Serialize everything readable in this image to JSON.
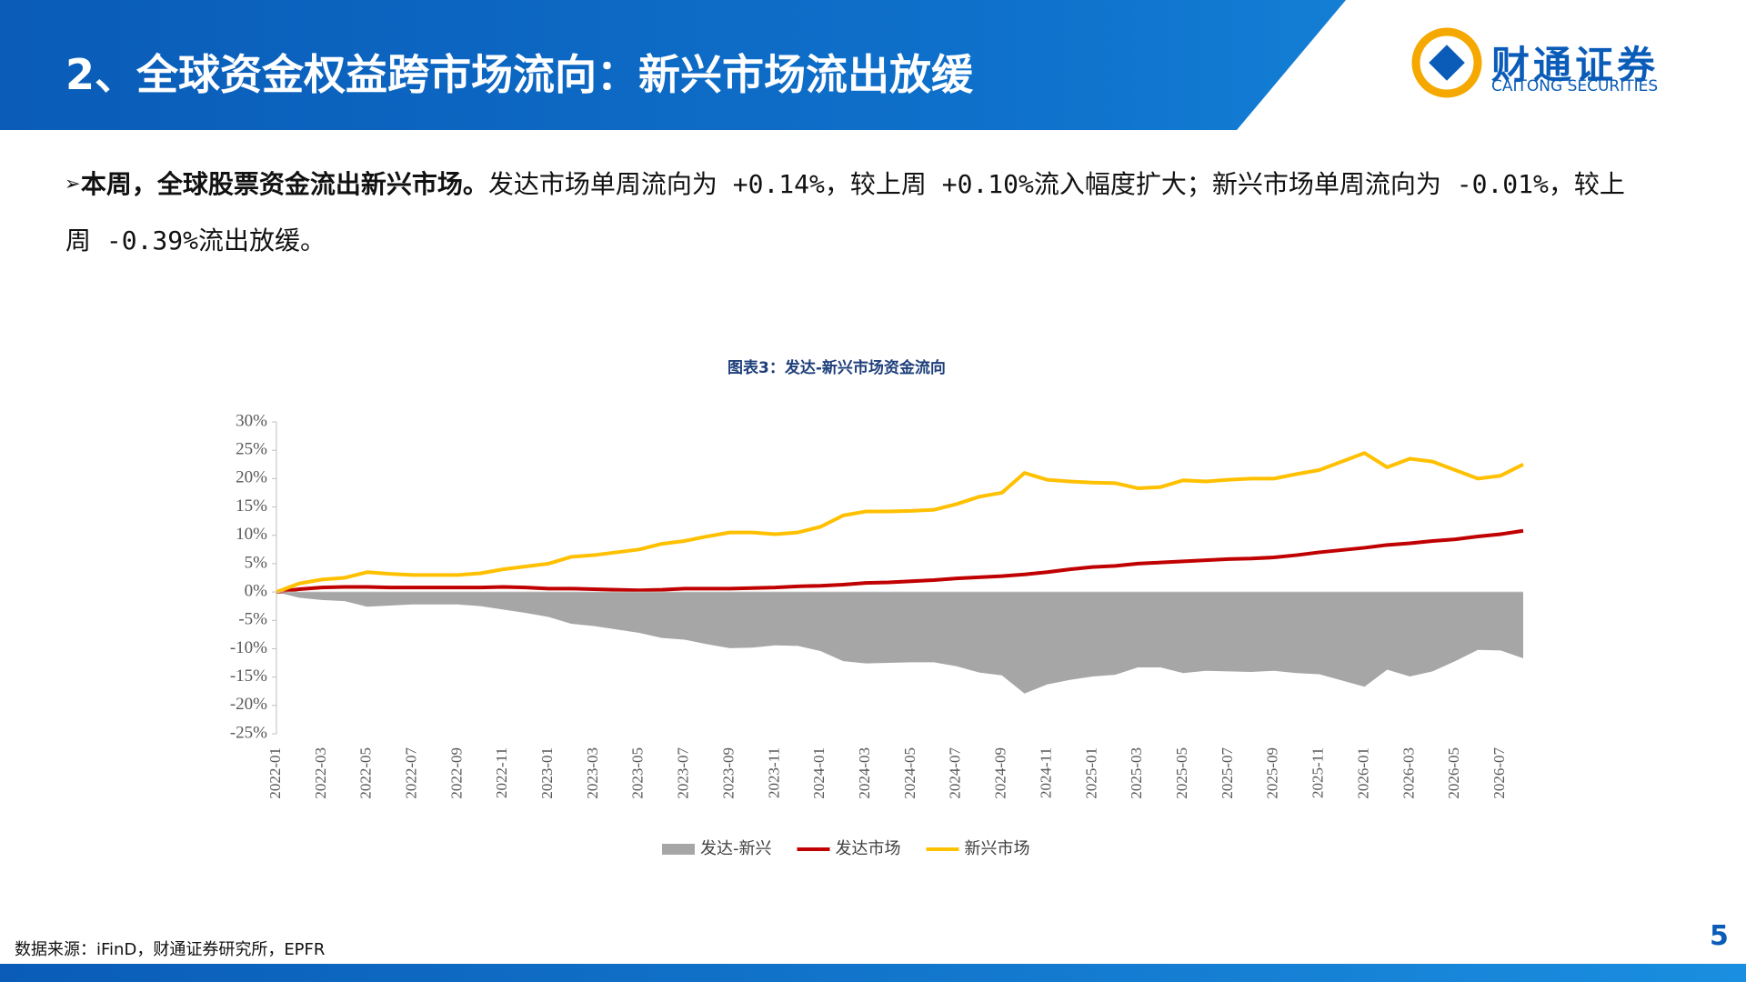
{
  "header": {
    "title": "2、全球资金权益跨市场流向：新兴市场流出放缓",
    "logo_cn": "财通证券",
    "logo_en": "CAITONG SECURITIES"
  },
  "bullet": {
    "bold": "本周，全球股票资金流出新兴市场。",
    "text": "发达市场单周流向为 +0.14%，较上周 +0.10%流入幅度扩大；新兴市场单周流向为 -0.01%，较上周 -0.39%流出放缓。"
  },
  "chart_data": {
    "type": "line",
    "title": "图表3：发达-新兴市场资金流向",
    "categories": [
      "2022-01",
      null,
      "2022-03",
      null,
      "2022-05",
      null,
      "2022-07",
      null,
      "2022-09",
      null,
      "2022-11",
      null,
      "2023-01",
      null,
      "2023-03",
      null,
      "2023-05",
      null,
      "2023-07",
      null,
      "2023-09",
      null,
      "2023-11",
      null,
      "2024-01",
      null,
      "2024-03",
      null,
      "2024-05",
      null,
      "2024-07",
      null,
      "2024-09",
      null,
      "2024-11",
      null,
      "2025-01",
      null,
      "2025-03",
      null,
      "2025-05",
      null,
      "2025-07",
      null,
      "2025-09",
      null,
      "2025-11",
      null,
      "2026-01",
      null,
      "2026-03",
      null,
      "2026-05",
      null,
      "2026-07",
      null
    ],
    "series": [
      {
        "name": "发达-新兴",
        "kind": "area",
        "color": "#a6a6a6",
        "values": [
          0,
          -1.0,
          -1.4,
          -1.6,
          -2.6,
          -2.4,
          -2.2,
          -2.2,
          -2.2,
          -2.5,
          -3.1,
          -3.7,
          -4.4,
          -5.6,
          -6.0,
          -6.6,
          -7.2,
          -8.1,
          -8.4,
          -9.2,
          -9.9,
          -9.8,
          -9.4,
          -9.5,
          -10.4,
          -12.2,
          -12.6,
          -12.5,
          -12.4,
          -12.4,
          -13.1,
          -14.2,
          -14.7,
          -17.9,
          -16.3,
          -15.5,
          -14.9,
          -14.6,
          -13.3,
          -13.3,
          -14.3,
          -13.9,
          -14.0,
          -14.1,
          -13.9,
          -14.3,
          -14.5,
          -15.6,
          -16.7,
          -13.7,
          -14.9,
          -14.0,
          -12.2,
          -10.2,
          -10.3,
          -11.7
        ]
      },
      {
        "name": "发达市场",
        "kind": "line",
        "color": "#c00000",
        "values": [
          0,
          0.5,
          0.8,
          0.9,
          0.9,
          0.8,
          0.8,
          0.8,
          0.8,
          0.8,
          0.9,
          0.8,
          0.6,
          0.6,
          0.5,
          0.4,
          0.3,
          0.4,
          0.6,
          0.6,
          0.6,
          0.7,
          0.8,
          1.0,
          1.1,
          1.3,
          1.6,
          1.7,
          1.9,
          2.1,
          2.4,
          2.6,
          2.8,
          3.1,
          3.5,
          4.0,
          4.4,
          4.6,
          5.0,
          5.2,
          5.4,
          5.6,
          5.8,
          5.9,
          6.1,
          6.5,
          7.0,
          7.4,
          7.8,
          8.3,
          8.6,
          9.0,
          9.3,
          9.8,
          10.2,
          10.8
        ]
      },
      {
        "name": "新兴市场",
        "kind": "line",
        "color": "#ffc000",
        "values": [
          0,
          1.5,
          2.2,
          2.5,
          3.5,
          3.2,
          3.0,
          3.0,
          3.0,
          3.3,
          4.0,
          4.5,
          5.0,
          6.2,
          6.5,
          7.0,
          7.5,
          8.5,
          9.0,
          9.8,
          10.5,
          10.5,
          10.2,
          10.5,
          11.5,
          13.5,
          14.2,
          14.2,
          14.3,
          14.5,
          15.5,
          16.8,
          17.5,
          21.0,
          19.8,
          19.5,
          19.3,
          19.2,
          18.3,
          18.5,
          19.7,
          19.5,
          19.8,
          20.0,
          20.0,
          20.8,
          21.5,
          23.0,
          24.5,
          22.0,
          23.5,
          23.0,
          21.5,
          20.0,
          20.5,
          22.5
        ]
      }
    ],
    "ylim": [
      -25,
      30
    ],
    "yticks": [
      {
        "value": 30,
        "label": "30%"
      },
      {
        "value": 25,
        "label": "25%"
      },
      {
        "value": 20,
        "label": "20%"
      },
      {
        "value": 15,
        "label": "15%"
      },
      {
        "value": 10,
        "label": "10%"
      },
      {
        "value": 5,
        "label": "5%"
      },
      {
        "value": 0,
        "label": "0%"
      },
      {
        "value": -5,
        "label": "-5%"
      },
      {
        "value": -10,
        "label": "-10%"
      },
      {
        "value": -15,
        "label": "-15%"
      },
      {
        "value": -20,
        "label": "-20%"
      },
      {
        "value": -25,
        "label": "-25%"
      }
    ],
    "grid": false,
    "legend": "bottom"
  },
  "source": "数据来源：iFinD，财通证券研究所，EPFR",
  "page_number": 5
}
